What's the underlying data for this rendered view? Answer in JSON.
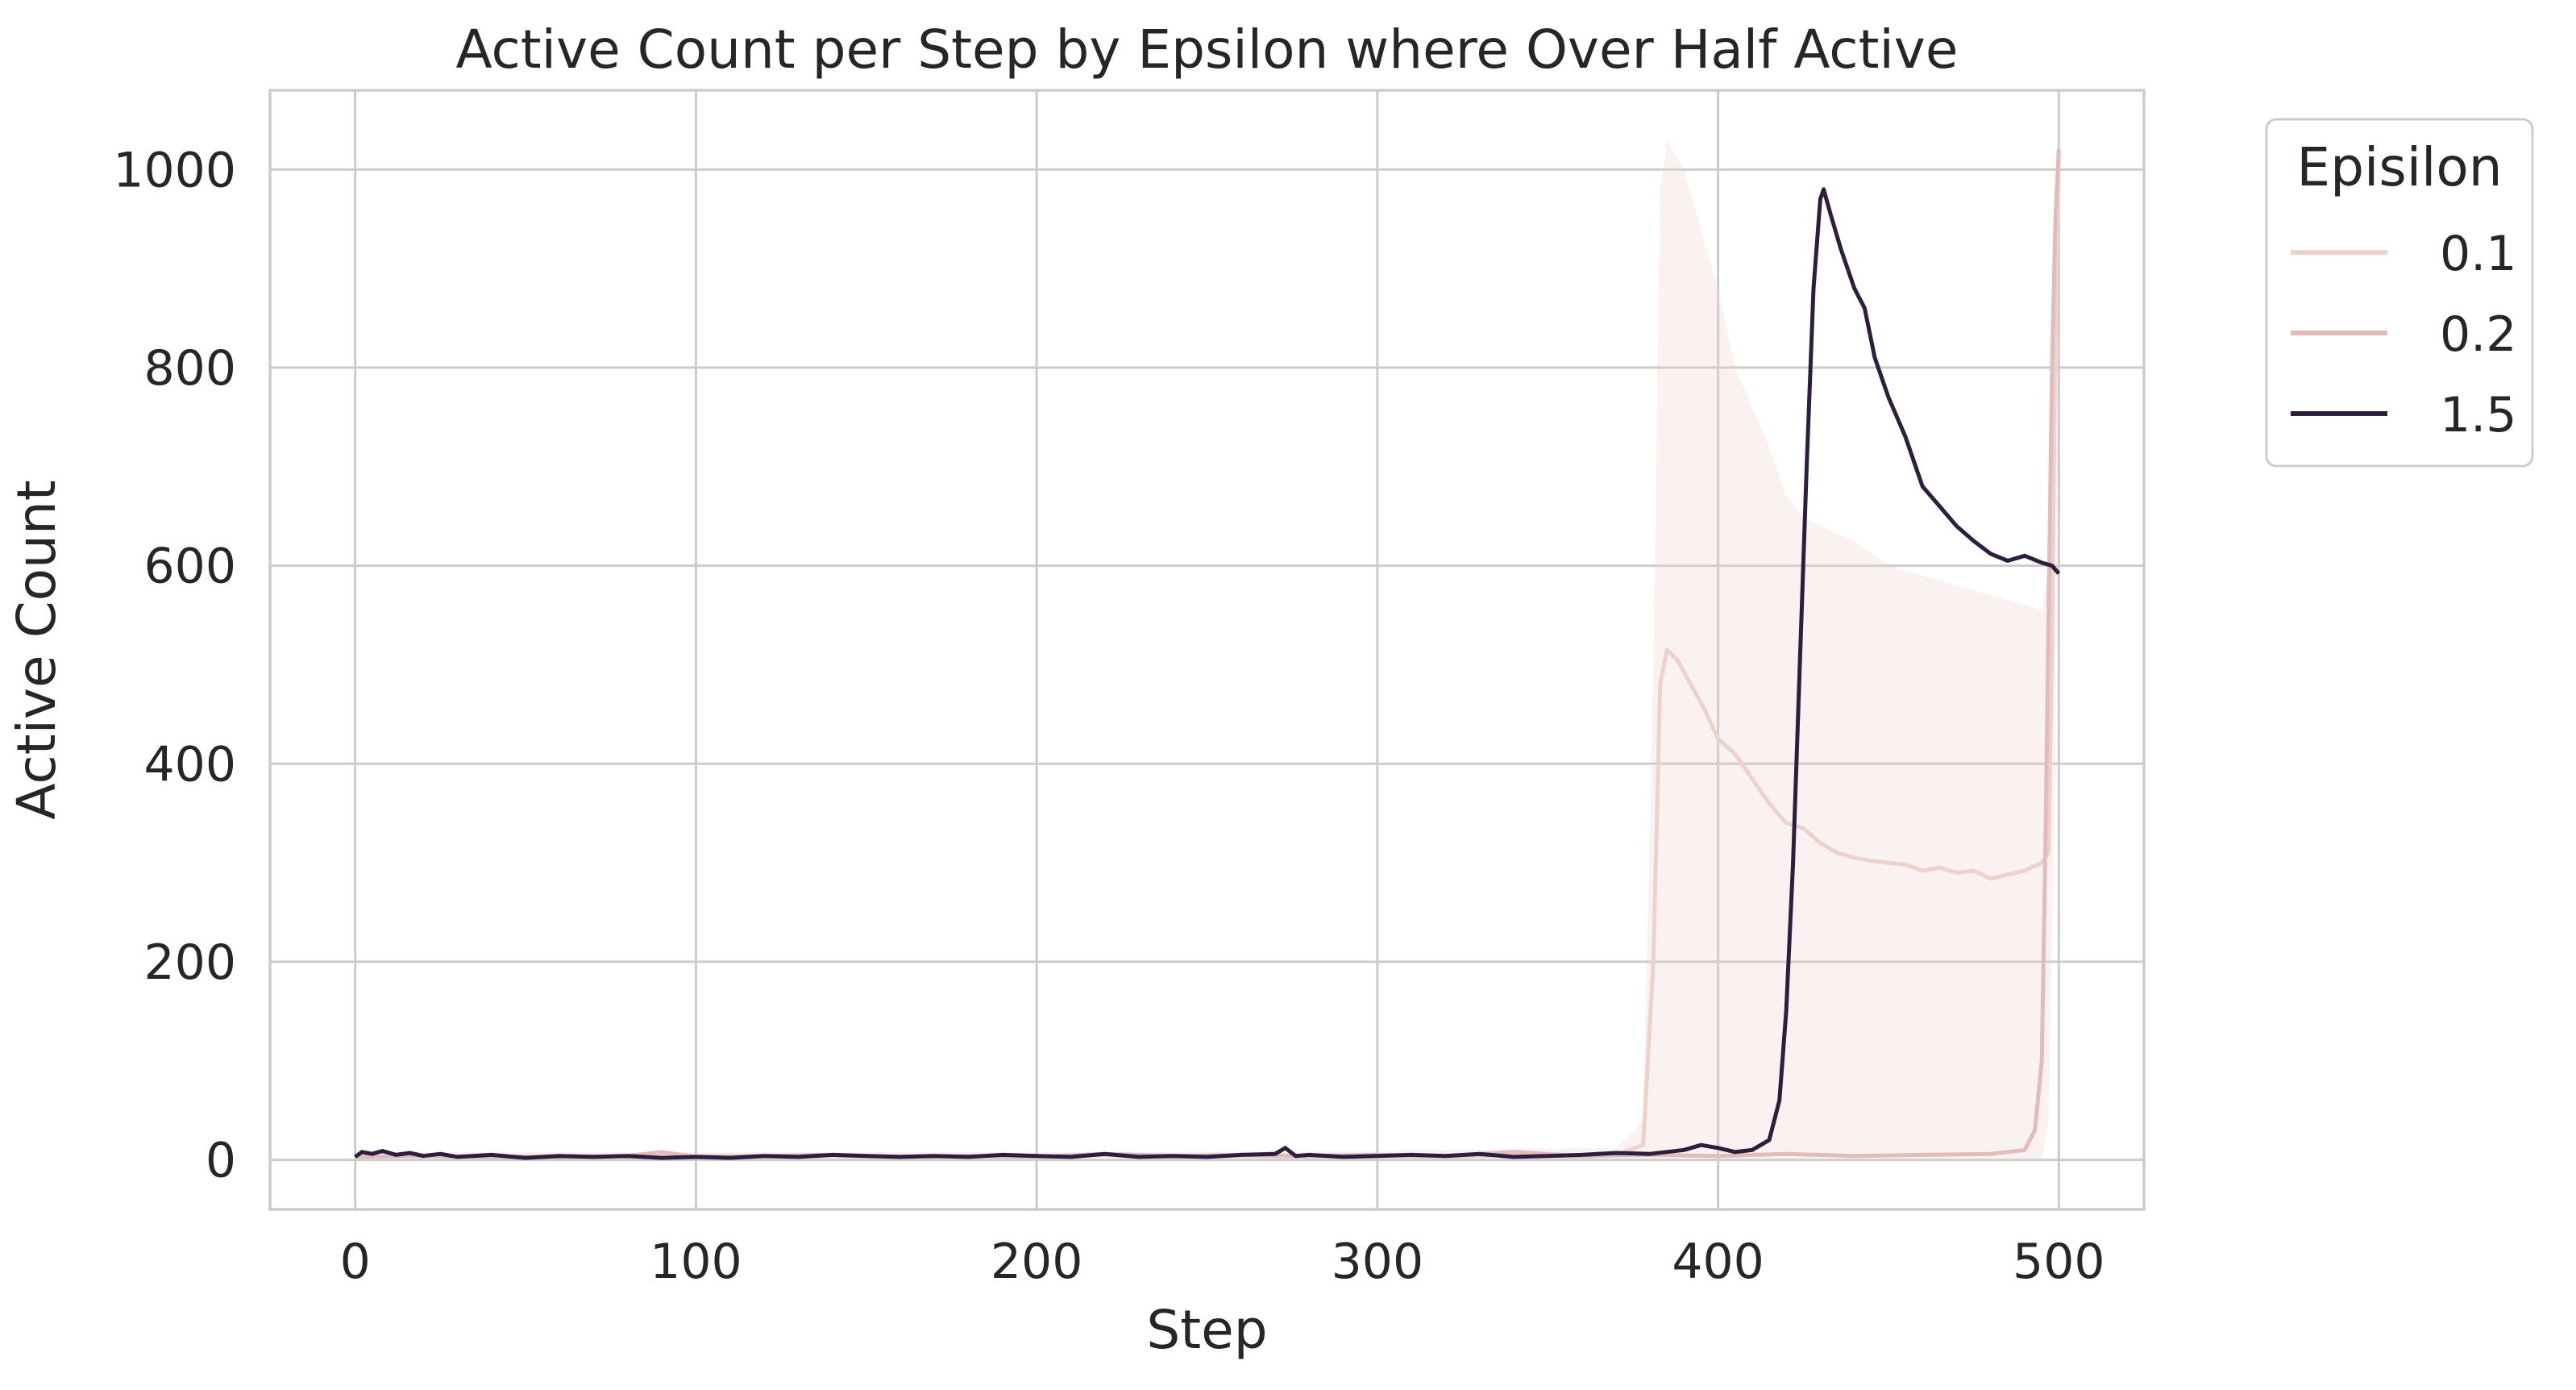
{
  "chart_data": {
    "type": "line",
    "title": "Active Count per Step by Epsilon where Over Half Active",
    "xlabel": "Step",
    "ylabel": "Active Count",
    "xlim": [
      -25,
      525
    ],
    "ylim": [
      -50,
      1080
    ],
    "xticks": [
      0,
      100,
      200,
      300,
      400,
      500
    ],
    "yticks": [
      0,
      200,
      400,
      600,
      800,
      1000
    ],
    "grid": true,
    "legend": {
      "title": "Episilon",
      "placement": "outside top-right"
    },
    "series": [
      {
        "name": "0.1",
        "color": "#edd1cb",
        "points": [
          [
            0,
            3
          ],
          [
            20,
            4
          ],
          [
            40,
            3
          ],
          [
            60,
            4
          ],
          [
            80,
            3
          ],
          [
            100,
            4
          ],
          [
            120,
            3
          ],
          [
            140,
            4
          ],
          [
            160,
            3
          ],
          [
            180,
            4
          ],
          [
            200,
            3
          ],
          [
            220,
            5
          ],
          [
            240,
            3
          ],
          [
            260,
            4
          ],
          [
            280,
            3
          ],
          [
            300,
            4
          ],
          [
            320,
            3
          ],
          [
            340,
            5
          ],
          [
            360,
            3
          ],
          [
            370,
            5
          ],
          [
            378,
            15
          ],
          [
            381,
            200
          ],
          [
            383,
            480
          ],
          [
            385,
            515
          ],
          [
            388,
            505
          ],
          [
            392,
            480
          ],
          [
            396,
            455
          ],
          [
            400,
            425
          ],
          [
            405,
            410
          ],
          [
            410,
            385
          ],
          [
            415,
            360
          ],
          [
            420,
            340
          ],
          [
            425,
            335
          ],
          [
            430,
            320
          ],
          [
            435,
            310
          ],
          [
            440,
            305
          ],
          [
            445,
            302
          ],
          [
            450,
            300
          ],
          [
            455,
            298
          ],
          [
            460,
            292
          ],
          [
            465,
            295
          ],
          [
            470,
            290
          ],
          [
            475,
            292
          ],
          [
            480,
            284
          ],
          [
            485,
            288
          ],
          [
            490,
            292
          ],
          [
            495,
            300
          ],
          [
            497,
            310
          ],
          [
            498,
            520
          ],
          [
            499,
            850
          ],
          [
            500,
            1020
          ]
        ],
        "band_upper": [
          [
            0,
            8
          ],
          [
            100,
            8
          ],
          [
            200,
            8
          ],
          [
            300,
            9
          ],
          [
            370,
            12
          ],
          [
            378,
            40
          ],
          [
            381,
            500
          ],
          [
            383,
            980
          ],
          [
            385,
            1030
          ],
          [
            390,
            1000
          ],
          [
            395,
            940
          ],
          [
            400,
            880
          ],
          [
            405,
            800
          ],
          [
            410,
            760
          ],
          [
            415,
            720
          ],
          [
            420,
            670
          ],
          [
            425,
            650
          ],
          [
            430,
            640
          ],
          [
            440,
            625
          ],
          [
            450,
            600
          ],
          [
            460,
            590
          ],
          [
            470,
            580
          ],
          [
            480,
            570
          ],
          [
            490,
            560
          ],
          [
            495,
            555
          ],
          [
            497,
            600
          ],
          [
            499,
            900
          ],
          [
            500,
            1020
          ]
        ],
        "band_lower": [
          [
            0,
            0
          ],
          [
            100,
            0
          ],
          [
            200,
            0
          ],
          [
            300,
            0
          ],
          [
            370,
            0
          ],
          [
            380,
            0
          ],
          [
            385,
            0
          ],
          [
            400,
            0
          ],
          [
            450,
            0
          ],
          [
            490,
            0
          ],
          [
            495,
            0
          ],
          [
            497,
            40
          ],
          [
            499,
            400
          ],
          [
            500,
            1000
          ]
        ]
      },
      {
        "name": "0.2",
        "color": "#e0bcbc",
        "points": [
          [
            0,
            3
          ],
          [
            20,
            4
          ],
          [
            40,
            3
          ],
          [
            60,
            2
          ],
          [
            80,
            4
          ],
          [
            90,
            8
          ],
          [
            100,
            3
          ],
          [
            120,
            4
          ],
          [
            140,
            5
          ],
          [
            160,
            3
          ],
          [
            180,
            4
          ],
          [
            200,
            3
          ],
          [
            220,
            6
          ],
          [
            240,
            4
          ],
          [
            260,
            5
          ],
          [
            280,
            4
          ],
          [
            300,
            5
          ],
          [
            320,
            4
          ],
          [
            340,
            8
          ],
          [
            360,
            4
          ],
          [
            380,
            5
          ],
          [
            400,
            4
          ],
          [
            420,
            6
          ],
          [
            440,
            4
          ],
          [
            460,
            5
          ],
          [
            480,
            6
          ],
          [
            490,
            10
          ],
          [
            493,
            30
          ],
          [
            495,
            100
          ],
          [
            496,
            300
          ],
          [
            497,
            550
          ],
          [
            498,
            800
          ],
          [
            499,
            950
          ],
          [
            500,
            1020
          ]
        ]
      },
      {
        "name": "1.5",
        "color": "#2d1e3e",
        "points": [
          [
            0,
            3
          ],
          [
            2,
            8
          ],
          [
            5,
            6
          ],
          [
            8,
            9
          ],
          [
            12,
            5
          ],
          [
            16,
            7
          ],
          [
            20,
            4
          ],
          [
            25,
            6
          ],
          [
            30,
            3
          ],
          [
            40,
            5
          ],
          [
            50,
            2
          ],
          [
            60,
            4
          ],
          [
            70,
            3
          ],
          [
            80,
            4
          ],
          [
            90,
            2
          ],
          [
            100,
            3
          ],
          [
            110,
            2
          ],
          [
            120,
            4
          ],
          [
            130,
            3
          ],
          [
            140,
            5
          ],
          [
            150,
            4
          ],
          [
            160,
            3
          ],
          [
            170,
            4
          ],
          [
            180,
            3
          ],
          [
            190,
            5
          ],
          [
            200,
            4
          ],
          [
            210,
            3
          ],
          [
            220,
            6
          ],
          [
            230,
            3
          ],
          [
            240,
            4
          ],
          [
            250,
            3
          ],
          [
            260,
            5
          ],
          [
            270,
            6
          ],
          [
            273,
            12
          ],
          [
            276,
            4
          ],
          [
            280,
            5
          ],
          [
            290,
            3
          ],
          [
            300,
            4
          ],
          [
            310,
            5
          ],
          [
            320,
            4
          ],
          [
            330,
            6
          ],
          [
            340,
            3
          ],
          [
            350,
            4
          ],
          [
            360,
            5
          ],
          [
            370,
            7
          ],
          [
            380,
            6
          ],
          [
            390,
            10
          ],
          [
            395,
            15
          ],
          [
            400,
            12
          ],
          [
            405,
            8
          ],
          [
            410,
            10
          ],
          [
            415,
            20
          ],
          [
            418,
            60
          ],
          [
            420,
            150
          ],
          [
            422,
            300
          ],
          [
            424,
            500
          ],
          [
            426,
            700
          ],
          [
            428,
            880
          ],
          [
            430,
            970
          ],
          [
            431,
            980
          ],
          [
            433,
            955
          ],
          [
            436,
            920
          ],
          [
            440,
            880
          ],
          [
            443,
            860
          ],
          [
            446,
            810
          ],
          [
            450,
            770
          ],
          [
            455,
            730
          ],
          [
            460,
            680
          ],
          [
            465,
            660
          ],
          [
            470,
            640
          ],
          [
            475,
            625
          ],
          [
            480,
            612
          ],
          [
            485,
            605
          ],
          [
            490,
            610
          ],
          [
            495,
            603
          ],
          [
            498,
            600
          ],
          [
            500,
            592
          ]
        ]
      }
    ]
  }
}
